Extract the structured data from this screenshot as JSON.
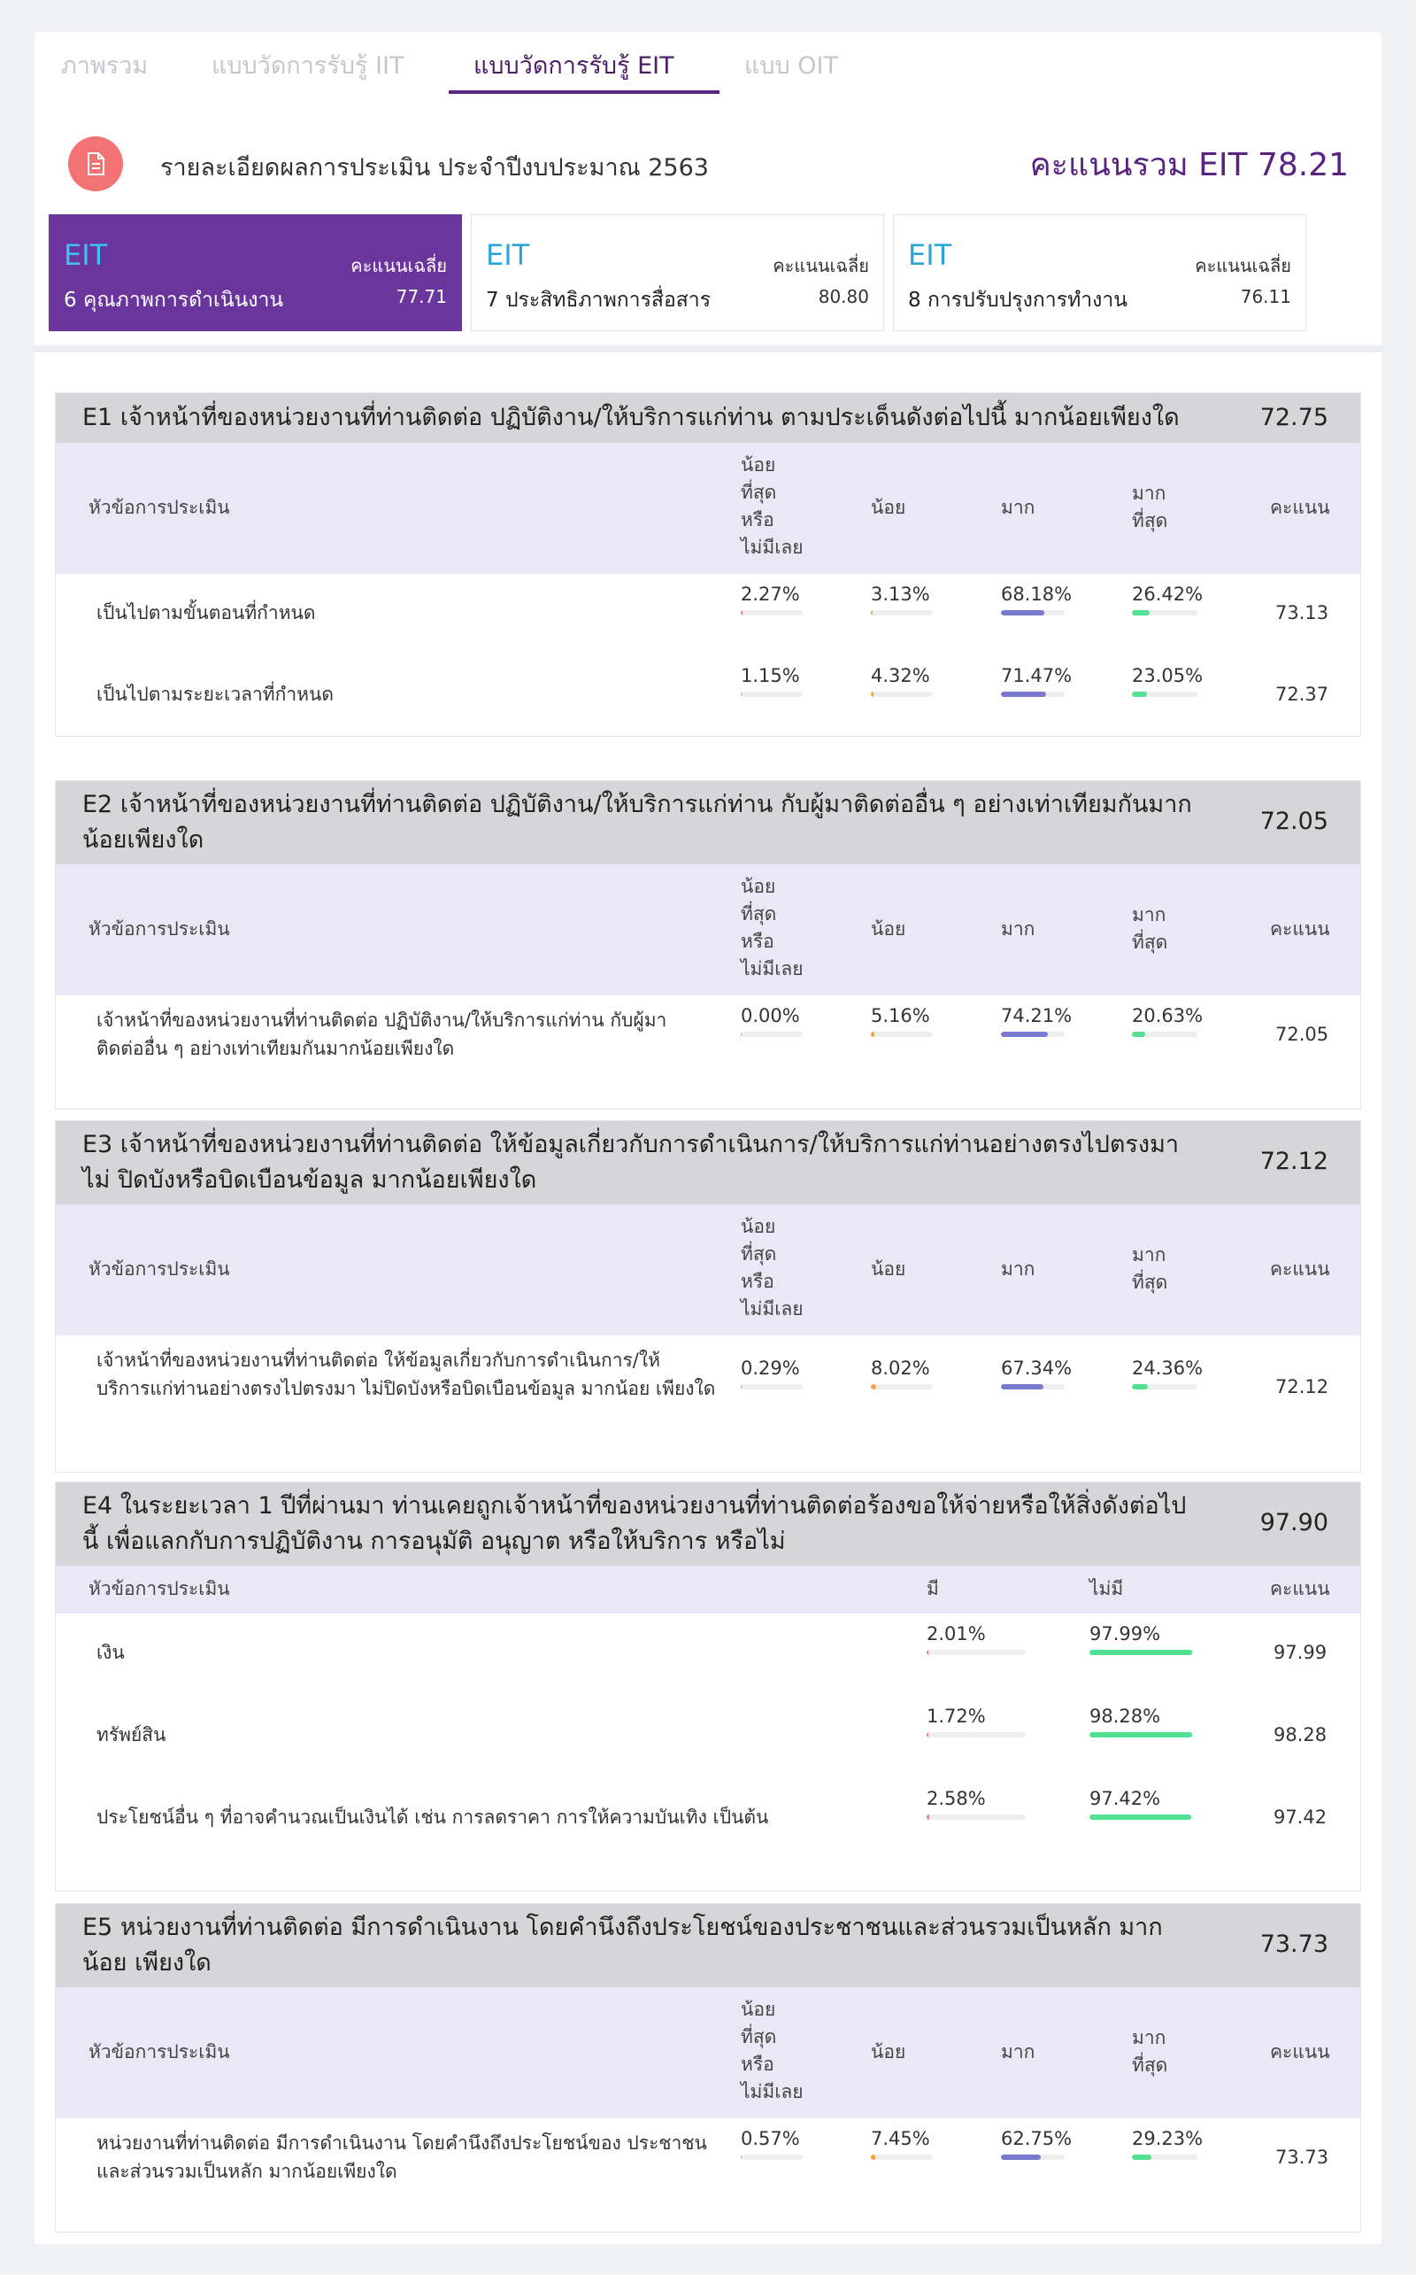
{
  "tabs": [
    "ภาพรวม",
    "แบบวัดการรับรู้ IIT",
    "แบบวัดการรับรู้ EIT",
    "แบบ OIT"
  ],
  "header": {
    "title": "รายละเอียดผลการประเมิน ประจำปีงบประมาณ 2563",
    "total_score": "คะแนนรวม EIT 78.21"
  },
  "metrics": [
    {
      "tag": "EIT",
      "avg_label": "คะแนนเฉลี่ย",
      "name": "6 คุณภาพการดำเนินงาน",
      "score": "77.71"
    },
    {
      "tag": "EIT",
      "avg_label": "คะแนนเฉลี่ย",
      "name": "7 ประสิทธิภาพการสื่อสาร",
      "score": "80.80"
    },
    {
      "tag": "EIT",
      "avg_label": "คะแนนเฉลี่ย",
      "name": "8 การปรับปรุงการทำงาน",
      "score": "76.11"
    }
  ],
  "col_labels": {
    "topic": "หัวข้อการประเมิน",
    "least": "น้อย\nที่สุด\nหรือ\nไม่มีเลย",
    "little": "น้อย",
    "much": "มาก",
    "most": "มาก\nที่สุด",
    "score": "คะแนน",
    "yes": "มี",
    "no": "ไม่มี"
  },
  "sections": [
    {
      "title": "E1 เจ้าหน้าที่ของหน่วยงานที่ท่านติดต่อ ปฏิบัติงาน/ให้บริการแก่ท่าน ตามประเด็นดังต่อไปนี้ มากน้อยเพียงใด",
      "score": "72.75",
      "rows": [
        {
          "text": "เป็นไปตามขั้นตอนที่กำหนด",
          "pcts": [
            "2.27%",
            "3.13%",
            "68.18%",
            "26.42%"
          ],
          "vals": [
            2.27,
            3.13,
            68.18,
            26.42
          ],
          "score": "73.13"
        },
        {
          "text": "เป็นไปตามระยะเวลาที่กำหนด",
          "pcts": [
            "1.15%",
            "4.32%",
            "71.47%",
            "23.05%"
          ],
          "vals": [
            1.15,
            4.32,
            71.47,
            23.05
          ],
          "score": "72.37"
        }
      ]
    },
    {
      "title": "E2 เจ้าหน้าที่ของหน่วยงานที่ท่านติดต่อ ปฏิบัติงาน/ให้บริการแก่ท่าน กับผู้มาติดต่ออื่น ๆ อย่างเท่าเทียมกันมาก น้อยเพียงใด",
      "score": "72.05",
      "rows": [
        {
          "text": "เจ้าหน้าที่ของหน่วยงานที่ท่านติดต่อ ปฏิบัติงาน/ให้บริการแก่ท่าน กับผู้มา ติดต่ออื่น ๆ อย่างเท่าเทียมกันมากน้อยเพียงใด",
          "pcts": [
            "0.00%",
            "5.16%",
            "74.21%",
            "20.63%"
          ],
          "vals": [
            0,
            5.16,
            74.21,
            20.63
          ],
          "score": "72.05"
        }
      ]
    },
    {
      "title": "E3 เจ้าหน้าที่ของหน่วยงานที่ท่านติดต่อ ให้ข้อมูลเกี่ยวกับการดำเนินการ/ให้บริการแก่ท่านอย่างตรงไปตรงมา ไม่ ปิดบังหรือบิดเบือนข้อมูล มากน้อยเพียงใด",
      "score": "72.12",
      "rows": [
        {
          "text": "เจ้าหน้าที่ของหน่วยงานที่ท่านติดต่อ ให้ข้อมูลเกี่ยวกับการดำเนินการ/ให้ บริการแก่ท่านอย่างตรงไปตรงมา ไม่ปิดบังหรือบิดเบือนข้อมูล มากน้อย เพียงใด",
          "pcts": [
            "0.29%",
            "8.02%",
            "67.34%",
            "24.36%"
          ],
          "vals": [
            0.29,
            8.02,
            67.34,
            24.36
          ],
          "score": "72.12"
        }
      ]
    },
    {
      "title": "E4 ในระยะเวลา 1 ปีที่ผ่านมา ท่านเคยถูกเจ้าหน้าที่ของหน่วยงานที่ท่านติดต่อร้องขอให้จ่ายหรือให้สิ่งดังต่อไปนี้ เพื่อแลกกับการปฏิบัติงาน การอนุมัติ อนุญาต หรือให้บริการ หรือไม่",
      "score": "97.90",
      "rows": [
        {
          "text": "เงิน",
          "pcts": [
            "2.01%",
            "97.99%"
          ],
          "vals": [
            2.01,
            97.99
          ],
          "score": "97.99"
        },
        {
          "text": "ทรัพย์สิน",
          "pcts": [
            "1.72%",
            "98.28%"
          ],
          "vals": [
            1.72,
            98.28
          ],
          "score": "98.28"
        },
        {
          "text": "ประโยชน์อื่น ๆ ที่อาจคำนวณเป็นเงินได้ เช่น การลดราคา การให้ความบันเทิง เป็นต้น",
          "pcts": [
            "2.58%",
            "97.42%"
          ],
          "vals": [
            2.58,
            97.42
          ],
          "score": "97.42"
        }
      ]
    },
    {
      "title": "E5 หน่วยงานที่ท่านติดต่อ มีการดำเนินงาน โดยคำนึงถึงประโยชน์ของประชาชนและส่วนรวมเป็นหลัก มากน้อย เพียงใด",
      "score": "73.73",
      "rows": [
        {
          "text": "หน่วยงานที่ท่านติดต่อ มีการดำเนินงาน โดยคำนึงถึงประโยชน์ของ ประชาชนและส่วนรวมเป็นหลัก มากน้อยเพียงใด",
          "pcts": [
            "0.57%",
            "7.45%",
            "62.75%",
            "29.23%"
          ],
          "vals": [
            0.57,
            7.45,
            62.75,
            29.23
          ],
          "score": "73.73"
        }
      ]
    }
  ]
}
